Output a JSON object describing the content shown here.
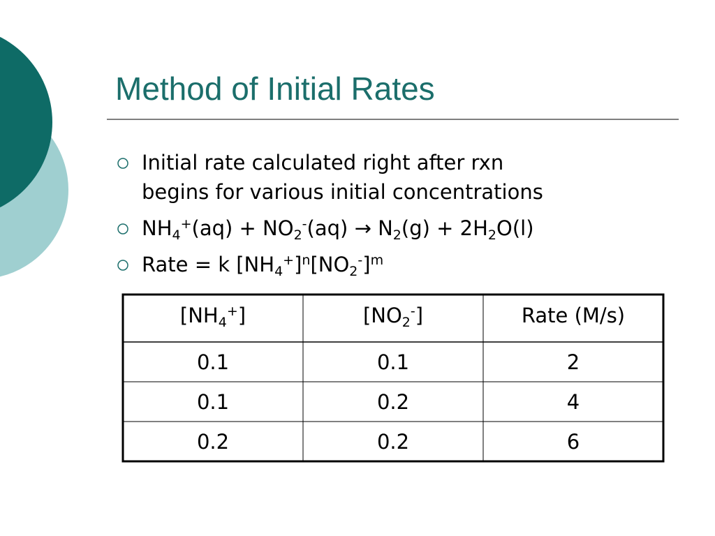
{
  "title": "Method of Initial Rates",
  "bullets": [
    [
      [
        {
          "text": "Initial rate calculated right after rxn"
        }
      ],
      [
        {
          "text": "begins for various initial concentrations"
        }
      ]
    ],
    [
      [
        {
          "text": "NH"
        },
        {
          "sub": "4"
        },
        {
          "sup": "+"
        },
        {
          "text": "(aq) + NO"
        },
        {
          "sub": "2"
        },
        {
          "sup": "-"
        },
        {
          "text": "(aq) "
        },
        {
          "text": "→"
        },
        {
          "text": " N"
        },
        {
          "sub": "2"
        },
        {
          "text": "(g) + 2H"
        },
        {
          "sub": "2"
        },
        {
          "text": "O(l)"
        }
      ]
    ],
    [
      [
        {
          "text": "Rate = k [NH"
        },
        {
          "sub": "4"
        },
        {
          "sup": "+"
        },
        {
          "text": "]"
        },
        {
          "sup": "n"
        },
        {
          "text": "[NO"
        },
        {
          "sub": "2"
        },
        {
          "sup": "-"
        },
        {
          "text": "]"
        },
        {
          "sup": "m"
        }
      ]
    ]
  ],
  "table": {
    "header": [
      [
        {
          "text": "[NH"
        },
        {
          "sub": "4"
        },
        {
          "sup": "+"
        },
        {
          "text": "]"
        }
      ],
      [
        {
          "text": "[NO"
        },
        {
          "sub": "2"
        },
        {
          "sup": "-"
        },
        {
          "text": "]"
        }
      ],
      [
        {
          "text": "Rate (M/s)"
        }
      ]
    ],
    "rows": [
      [
        0.1,
        0.1,
        2
      ],
      [
        0.1,
        0.2,
        4
      ],
      [
        0.2,
        0.2,
        6
      ]
    ]
  }
}
